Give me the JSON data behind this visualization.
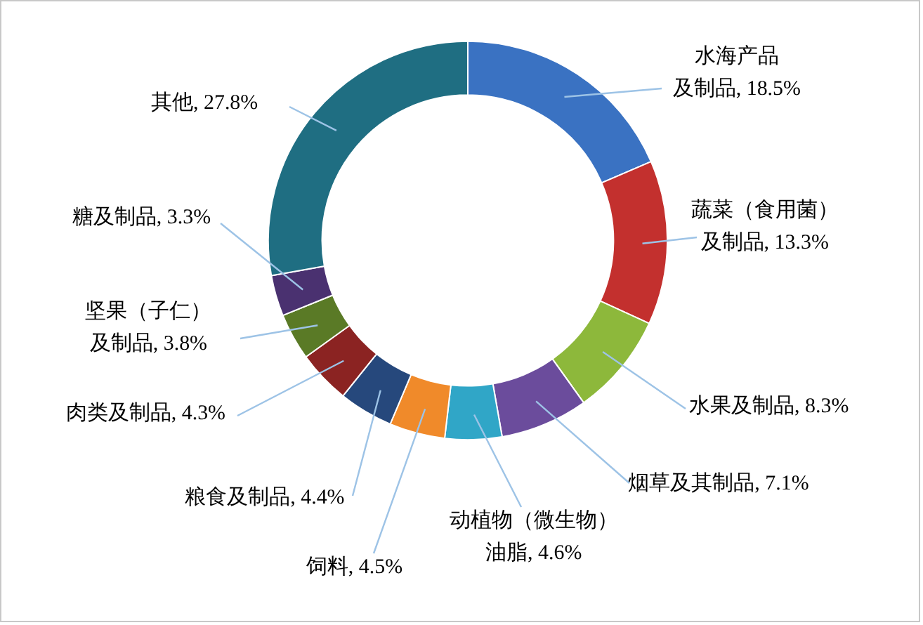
{
  "chart_data": {
    "type": "donut",
    "categories": [
      "水海产品及制品",
      "蔬菜（食用菌）及制品",
      "水果及制品",
      "烟草及其制品",
      "动植物（微生物）油脂",
      "饲料",
      "粮食及制品",
      "肉类及制品",
      "坚果（子仁）及制品",
      "糖及制品",
      "其他"
    ],
    "values": [
      18.5,
      13.3,
      8.3,
      7.1,
      4.6,
      4.5,
      4.4,
      4.3,
      3.8,
      3.3,
      27.8
    ],
    "value_labels": [
      "18.5%",
      "13.3%",
      "8.3%",
      "7.1%",
      "4.6%",
      "4.5%",
      "4.4%",
      "4.3%",
      "3.8%",
      "3.3%",
      "27.8%"
    ],
    "colors": [
      "#3a72c2",
      "#c3302e",
      "#8db83b",
      "#6b4c9c",
      "#30a6c7",
      "#f08a2a",
      "#26487c",
      "#8b2322",
      "#5a7a26",
      "#4a3170",
      "#1f6e82"
    ],
    "legend": false
  }
}
